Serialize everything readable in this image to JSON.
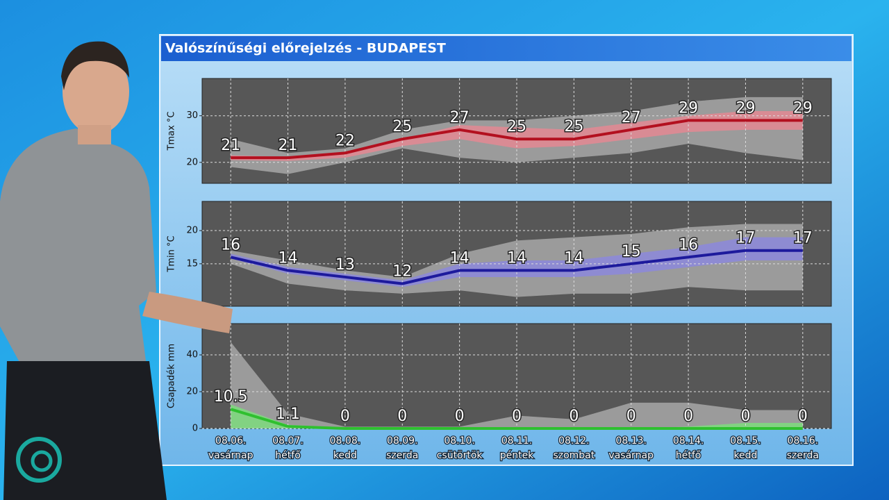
{
  "title": "Valószínűségi előrejelzés - BUDAPEST",
  "chart_data": [
    {
      "type": "band-line",
      "ylabel": "Tmax °C",
      "color": "#b3101f",
      "ylim": [
        15.5,
        38
      ],
      "yticks": [
        20,
        30
      ],
      "grid": true,
      "values": [
        21,
        21,
        22,
        25,
        27,
        25,
        25,
        27,
        29,
        29,
        29
      ],
      "bands": [
        {
          "color": "#a3a3a3",
          "low": [
            19,
            17.5,
            20,
            23,
            21,
            20,
            21,
            22,
            24,
            22,
            20.5
          ],
          "high": [
            25,
            22,
            23,
            27,
            29,
            29,
            30,
            31,
            33,
            34,
            34
          ]
        },
        {
          "color": "#e08a94",
          "low": [
            20.5,
            20.3,
            21,
            23.5,
            25,
            23,
            23.5,
            25,
            26.5,
            27,
            27
          ],
          "high": [
            21.5,
            21.2,
            22,
            25,
            28,
            27.5,
            27,
            28.5,
            30,
            31,
            31
          ]
        }
      ]
    },
    {
      "type": "band-line",
      "ylabel": "Tmin °C",
      "color": "#1d1a9c",
      "ylim": [
        8.6,
        24.4
      ],
      "yticks": [
        15,
        20
      ],
      "grid": true,
      "values": [
        16,
        14,
        13,
        12,
        14,
        14,
        14,
        15,
        16,
        17,
        17
      ],
      "bands": [
        {
          "color": "#a3a3a3",
          "low": [
            15,
            12,
            11,
            10.5,
            11,
            10,
            10.5,
            10.5,
            11.5,
            11,
            11
          ],
          "high": [
            17,
            15.5,
            14,
            13,
            16.5,
            18.5,
            19,
            19.5,
            20.5,
            21,
            21
          ]
        },
        {
          "color": "#8d8ad8",
          "low": [
            15.8,
            13.5,
            12.5,
            11.5,
            13,
            13,
            13,
            13.5,
            14.5,
            15.5,
            15.5
          ],
          "high": [
            16.5,
            14.5,
            13.5,
            12.5,
            15,
            15.5,
            15.5,
            16.5,
            17.5,
            19,
            19
          ]
        }
      ]
    },
    {
      "type": "band-line",
      "ylabel": "Csapadék mm",
      "color": "#2fc02f",
      "ylim": [
        0,
        57
      ],
      "yticks": [
        0,
        20,
        40
      ],
      "grid": true,
      "values": [
        10.5,
        1.1,
        0,
        0,
        0,
        0,
        0,
        0,
        0,
        0,
        0
      ],
      "bands": [
        {
          "color": "#a3a3a3",
          "low": [
            0,
            0,
            0,
            0,
            0,
            0,
            0,
            0,
            0,
            0,
            0
          ],
          "high": [
            47,
            8,
            1,
            1,
            1,
            7,
            5,
            14,
            14,
            10,
            10
          ]
        },
        {
          "color": "#7fd87f",
          "low": [
            0,
            0,
            0,
            0,
            0,
            0,
            0,
            0,
            0,
            0,
            0
          ],
          "high": [
            13,
            2,
            0.5,
            0,
            0,
            0,
            0,
            0,
            1,
            3,
            3
          ]
        }
      ],
      "categories": [
        "08.06.",
        "08.07.",
        "08.08.",
        "08.09.",
        "08.10.",
        "08.11.",
        "08.12.",
        "08.13.",
        "08.14.",
        "08.15.",
        "08.16."
      ],
      "weekdays": [
        "vasárnap",
        "hétfő",
        "kedd",
        "szerda",
        "csütörtök",
        "péntek",
        "szombat",
        "vasárnap",
        "hétfő",
        "kedd",
        "szerda"
      ]
    }
  ]
}
